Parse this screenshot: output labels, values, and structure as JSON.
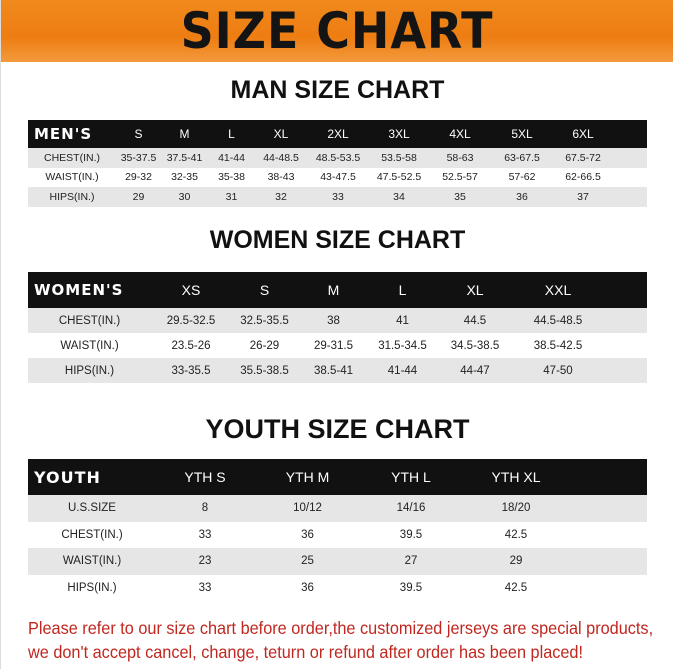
{
  "banner_title": "SIZE CHART",
  "men": {
    "title": "MAN SIZE CHART",
    "header": [
      "MEN'S",
      "S",
      "M",
      "L",
      "XL",
      "2XL",
      "3XL",
      "4XL",
      "5XL",
      "6XL"
    ],
    "rows": [
      [
        "CHEST(IN.)",
        "35-37.5",
        "37.5-41",
        "41-44",
        "44-48.5",
        "48.5-53.5",
        "53.5-58",
        "58-63",
        "63-67.5",
        "67.5-72"
      ],
      [
        "WAIST(IN.)",
        "29-32",
        "32-35",
        "35-38",
        "38-43",
        "43-47.5",
        "47.5-52.5",
        "52.5-57",
        "57-62",
        "62-66.5"
      ],
      [
        "HIPS(IN.)",
        "29",
        "30",
        "31",
        "32",
        "33",
        "34",
        "35",
        "36",
        "37"
      ]
    ]
  },
  "women": {
    "title": "WOMEN SIZE CHART",
    "header": [
      "WOMEN'S",
      "XS",
      "S",
      "M",
      "L",
      "XL",
      "XXL"
    ],
    "rows": [
      [
        "CHEST(IN.)",
        "29.5-32.5",
        "32.5-35.5",
        "38",
        "41",
        "44.5",
        "44.5-48.5"
      ],
      [
        "WAIST(IN.)",
        "23.5-26",
        "26-29",
        "29-31.5",
        "31.5-34.5",
        "34.5-38.5",
        "38.5-42.5"
      ],
      [
        "HIPS(IN.)",
        "33-35.5",
        "35.5-38.5",
        "38.5-41",
        "41-44",
        "44-47",
        "47-50"
      ]
    ]
  },
  "youth": {
    "title": "YOUTH SIZE CHART",
    "header": [
      "YOUTH",
      "YTH S",
      "YTH M",
      "YTH L",
      "YTH XL"
    ],
    "rows": [
      [
        "U.S.SIZE",
        "8",
        "10/12",
        "14/16",
        "18/20"
      ],
      [
        "CHEST(IN.)",
        "33",
        "36",
        "39.5",
        "42.5"
      ],
      [
        "WAIST(IN.)",
        "23",
        "25",
        "27",
        "29"
      ],
      [
        "HIPS(IN.)",
        "33",
        "36",
        "39.5",
        "42.5"
      ]
    ]
  },
  "notice": {
    "line1": "Please refer to our size chart before order,the customized jerseys are special products,",
    "line2": "we don't accept cancel, change, teturn or refund after order has been placed!"
  },
  "colors": {
    "banner": "#ee7d12",
    "header_row": "#111111",
    "stripe": "#e6e6e6",
    "notice": "#c0271f"
  }
}
